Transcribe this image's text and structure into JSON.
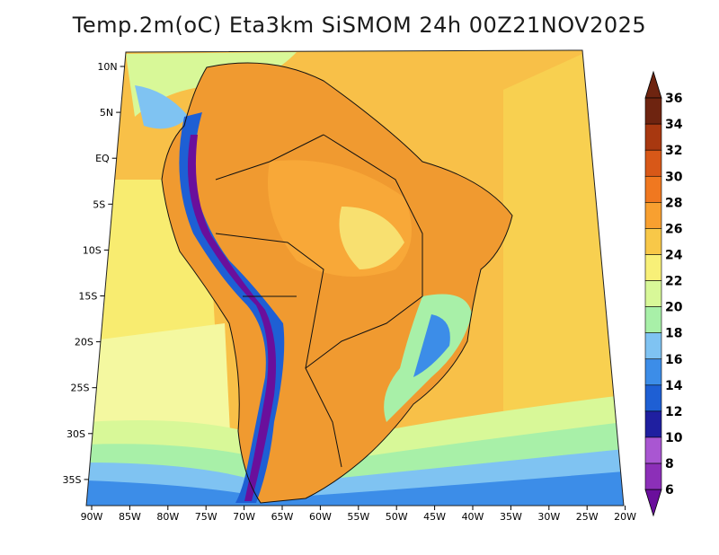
{
  "title": "Temp.2m(oC) Eta3km SiSMOM 24h 00Z21NOV2025",
  "map": {
    "lat_ticks": [
      "10N",
      "5N",
      "EQ",
      "5S",
      "10S",
      "15S",
      "20S",
      "25S",
      "30S",
      "35S"
    ],
    "lon_ticks": [
      "90W",
      "85W",
      "80W",
      "75W",
      "70W",
      "65W",
      "60W",
      "55W",
      "50W",
      "45W",
      "40W",
      "35W",
      "30W",
      "25W",
      "20W"
    ],
    "lat_range": [
      -38,
      11
    ],
    "lon_range": [
      -91,
      -19
    ]
  },
  "colorbar": {
    "labels": [
      "6",
      "8",
      "10",
      "12",
      "14",
      "16",
      "18",
      "20",
      "22",
      "24",
      "26",
      "28",
      "30",
      "32",
      "34",
      "36"
    ],
    "colors": [
      "#6a0f9c",
      "#8c2fb8",
      "#a956d2",
      "#1f1fa0",
      "#1e5fd4",
      "#3c8de8",
      "#7fc3f2",
      "#a8f0a8",
      "#d8f898",
      "#f8f078",
      "#f8c848",
      "#f8a030",
      "#f07820",
      "#d85818",
      "#a83810",
      "#6e2410"
    ]
  }
}
